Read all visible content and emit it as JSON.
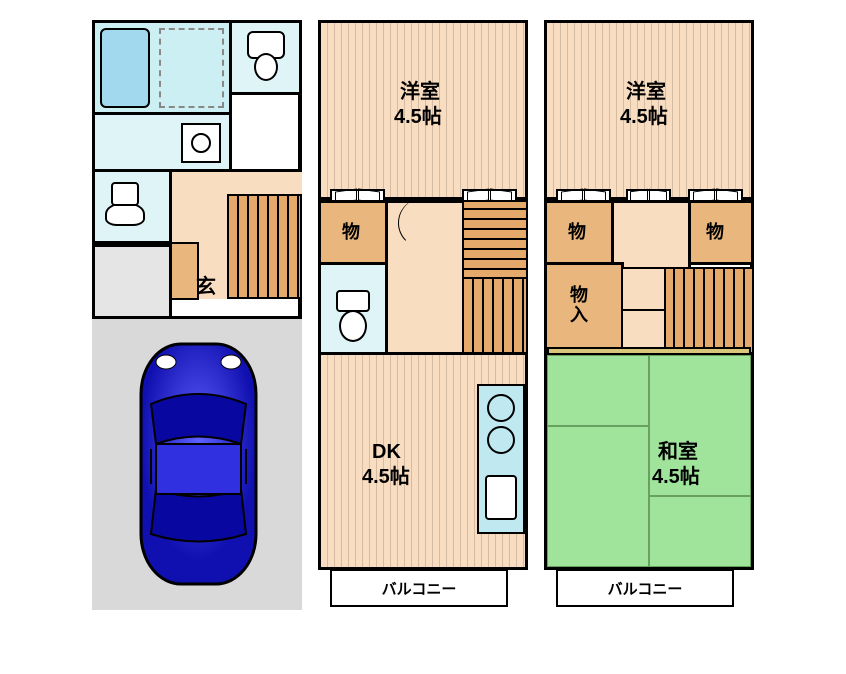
{
  "colors": {
    "wall": "#000000",
    "bg": "#ffffff",
    "wood_floor": "#f9ddc0",
    "wood_dark": "#e5a96b",
    "bath": "#cceff3",
    "bath_tub": "#a3d9ef",
    "toilet": "#def4f6",
    "kitchen": "#bfe8f0",
    "storage": "#e9b77d",
    "tatami_green": "#a0e49c",
    "tatami_border": "#d8c77a",
    "garage_gray": "#d9d9d9",
    "genkan": "#e5e5e5",
    "car_blue": "#2020d0",
    "car_light": "#4040ff",
    "balcony_bg": "#ffffff"
  },
  "labels": {
    "floor1": {
      "genkan": "玄"
    },
    "floor2": {
      "room_west": "洋室",
      "room_west_size": "4.5帖",
      "storage": "物",
      "dk": "DK",
      "dk_size": "4.5帖",
      "balcony": "バルコニー"
    },
    "floor3": {
      "room_west": "洋室",
      "room_west_size": "4.5帖",
      "storage1": "物",
      "storage2": "物",
      "storage_in": "物入",
      "room_japanese": "和室",
      "room_japanese_size": "4.5帖",
      "balcony": "バルコニー"
    }
  },
  "font_sizes": {
    "room_name": 20,
    "room_size": 20,
    "storage": 18,
    "genkan": 20,
    "balcony": 15
  }
}
